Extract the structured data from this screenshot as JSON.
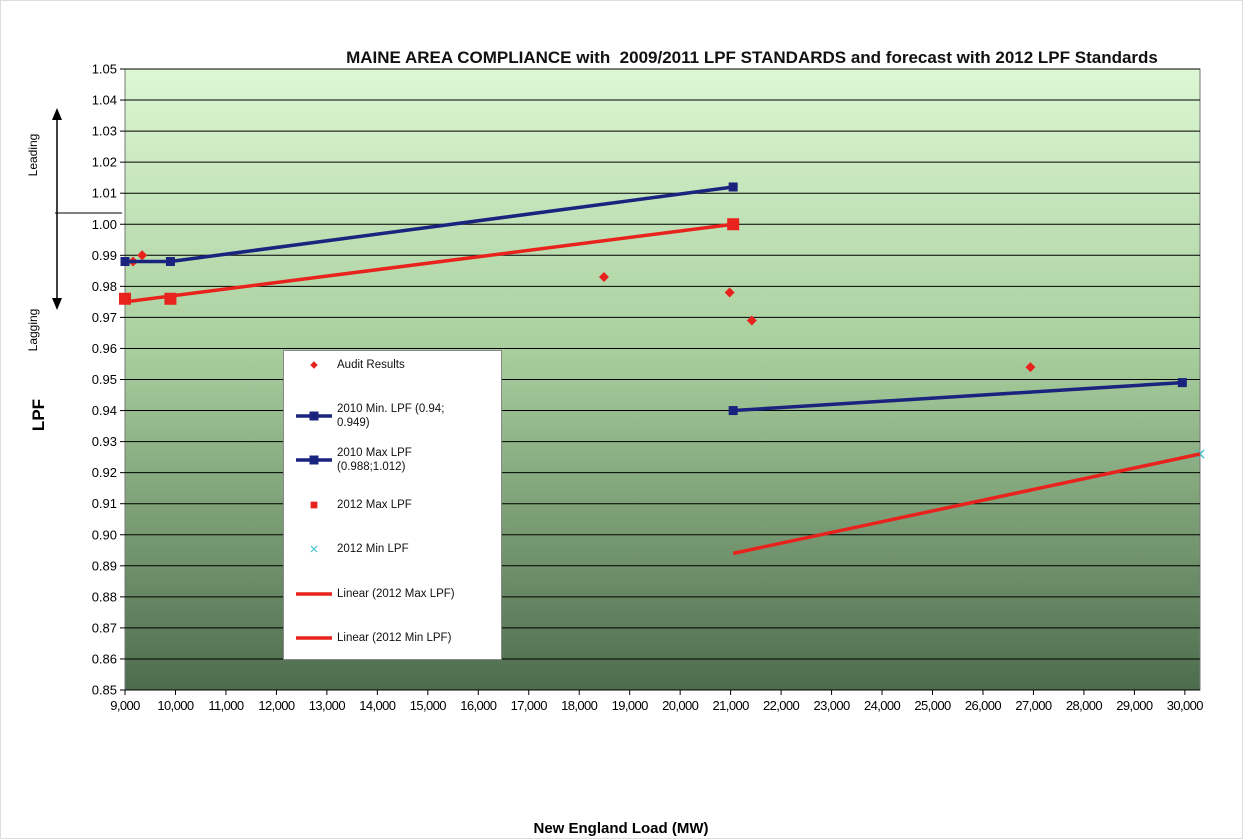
{
  "chart_data": {
    "type": "scatter",
    "title": "MAINE AREA COMPLIANCE with  2009/2011 LPF STANDARDS and forecast with 2012 LPF Standards",
    "x_label": "New England Load (MW)",
    "y_label": "LPF",
    "annotations": [
      "Leading",
      "Lagging"
    ],
    "xlim": [
      9000,
      30300
    ],
    "ylim": [
      0.85,
      1.05
    ],
    "xticks": [
      {
        "value": 9000,
        "label": "9,000"
      },
      {
        "value": 10000,
        "label": "10,000"
      },
      {
        "value": 11000,
        "label": "11,000"
      },
      {
        "value": 12000,
        "label": "12,000"
      },
      {
        "value": 13000,
        "label": "13,000"
      },
      {
        "value": 14000,
        "label": "14,000"
      },
      {
        "value": 15000,
        "label": "15,000"
      },
      {
        "value": 16000,
        "label": "16,000"
      },
      {
        "value": 17000,
        "label": "17,000"
      },
      {
        "value": 18000,
        "label": "18,000"
      },
      {
        "value": 19000,
        "label": "19,000"
      },
      {
        "value": 20000,
        "label": "20,000"
      },
      {
        "value": 21000,
        "label": "21,000"
      },
      {
        "value": 22000,
        "label": "22,000"
      },
      {
        "value": 23000,
        "label": "23,000"
      },
      {
        "value": 24000,
        "label": "24,000"
      },
      {
        "value": 25000,
        "label": "25,000"
      },
      {
        "value": 26000,
        "label": "26,000"
      },
      {
        "value": 27000,
        "label": "27,000"
      },
      {
        "value": 28000,
        "label": "28,000"
      },
      {
        "value": 29000,
        "label": "29,000"
      },
      {
        "value": 30000,
        "label": "30,000"
      }
    ],
    "yticks": [
      0.85,
      0.86,
      0.87,
      0.88,
      0.89,
      {
        "value": 0.9,
        "label": "0.90"
      },
      0.91,
      0.92,
      0.93,
      0.94,
      0.95,
      0.96,
      0.97,
      0.98,
      0.99,
      {
        "value": 1.0,
        "label": "1.00"
      },
      1.01,
      1.02,
      1.03,
      1.04,
      1.05
    ],
    "grid": true,
    "series": [
      {
        "name": "Audit Results",
        "color": "#e8231e",
        "marker": "diamond",
        "line": false,
        "x": [
          9160,
          9340,
          18490,
          20980,
          21420,
          26940
        ],
        "values": [
          0.988,
          0.99,
          0.983,
          0.978,
          0.969,
          0.954
        ]
      },
      {
        "name": "2010 Min. LPF (0.94; 0.949)",
        "color": "#1a237e",
        "marker": "square",
        "line": true,
        "x": [
          21050,
          29950
        ],
        "values": [
          0.94,
          0.949
        ]
      },
      {
        "name": "2010 Max LPF (0.988;1.012)",
        "color": "#1a237e",
        "marker": "square",
        "line": true,
        "x": [
          9000,
          9900,
          21050
        ],
        "values": [
          0.988,
          0.988,
          1.012
        ]
      },
      {
        "name": "2012 Max LPF",
        "color": "#e8231e",
        "marker": "bigsquare",
        "line": false,
        "x": [
          9000,
          9900,
          21050
        ],
        "values": [
          0.976,
          0.976,
          1.0
        ]
      },
      {
        "name": "2012 Min LPF",
        "color": "#40c0c8",
        "marker": "x",
        "line": false,
        "x": [
          30300
        ],
        "values": [
          0.926
        ]
      },
      {
        "name": "Linear (2012 Max LPF)",
        "color": "#e8231e",
        "marker": null,
        "line": true,
        "x": [
          9000,
          21050
        ],
        "values": [
          0.975,
          1.0
        ]
      },
      {
        "name": "Linear (2012 Min LPF)",
        "color": "#e8231e",
        "marker": null,
        "line": true,
        "x": [
          21050,
          30300
        ],
        "values": [
          0.894,
          0.926
        ]
      }
    ]
  }
}
